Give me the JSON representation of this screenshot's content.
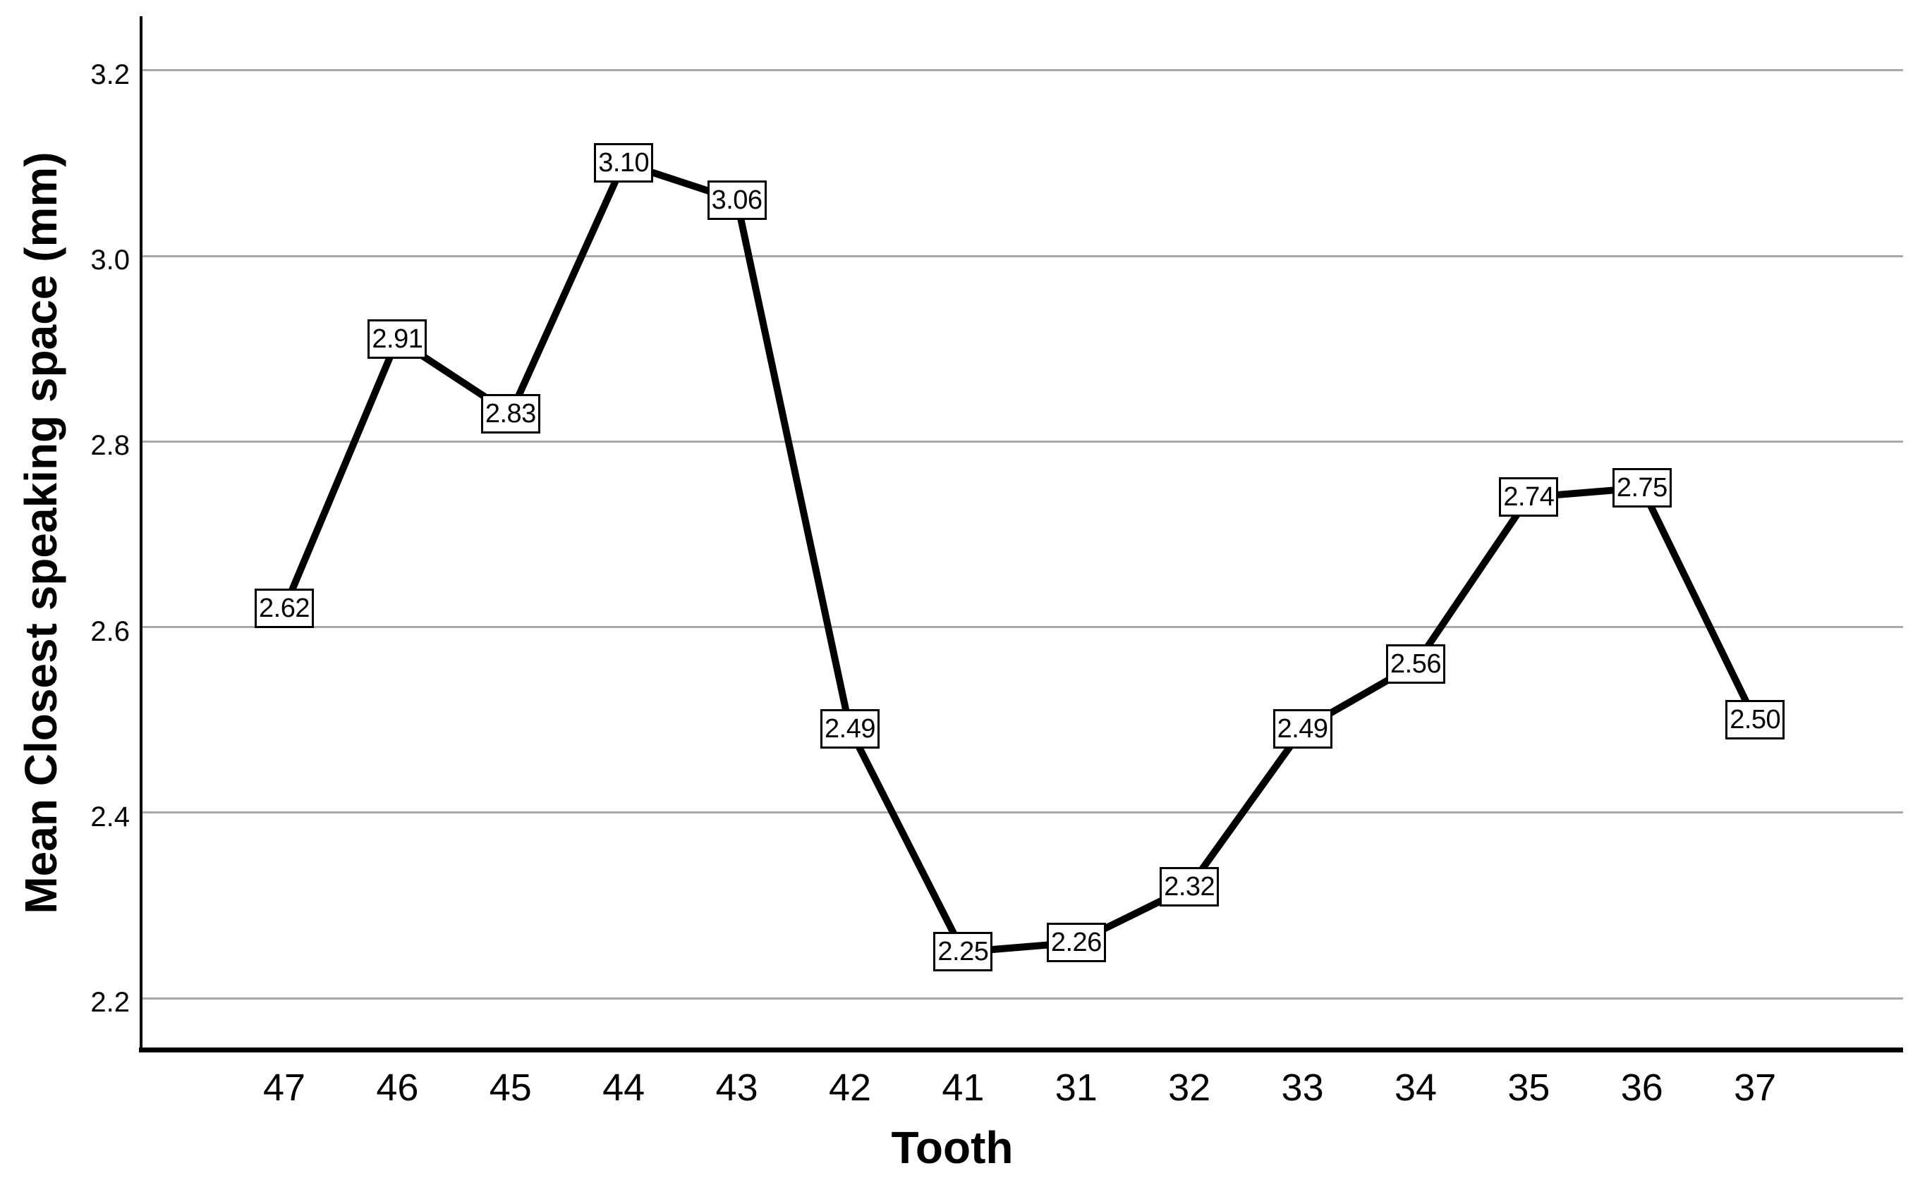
{
  "chart_data": {
    "type": "line",
    "title": "",
    "xlabel": "Tooth",
    "ylabel": "Mean Closest speaking space (mm)",
    "categories": [
      "47",
      "46",
      "45",
      "44",
      "43",
      "42",
      "41",
      "31",
      "32",
      "33",
      "34",
      "35",
      "36",
      "37"
    ],
    "series": [
      {
        "name": "Mean Closest speaking space (mm)",
        "values": [
          2.62,
          2.91,
          2.83,
          3.1,
          3.06,
          2.49,
          2.25,
          2.26,
          2.32,
          2.49,
          2.56,
          2.74,
          2.75,
          2.5
        ]
      }
    ],
    "point_labels": [
      "2.62",
      "2.91",
      "2.83",
      "3.10",
      "3.06",
      "2.49",
      "2.25",
      "2.26",
      "2.32",
      "2.49",
      "2.56",
      "2.74",
      "2.75",
      "2.50"
    ],
    "y_tick_values": [
      3.2,
      3.0,
      2.8,
      2.6,
      2.4,
      2.2
    ],
    "y_tick_labels": [
      "3.2",
      "3.0",
      "2.8",
      "2.6",
      "2.4",
      "2.2"
    ],
    "ylim": [
      2.145,
      3.258
    ],
    "grid": "horizontal",
    "legend": "none",
    "line_color": "#000000",
    "grid_color": "#a9a9a9",
    "label_box_fill": "#ffffff",
    "label_box_border": "#000000"
  }
}
